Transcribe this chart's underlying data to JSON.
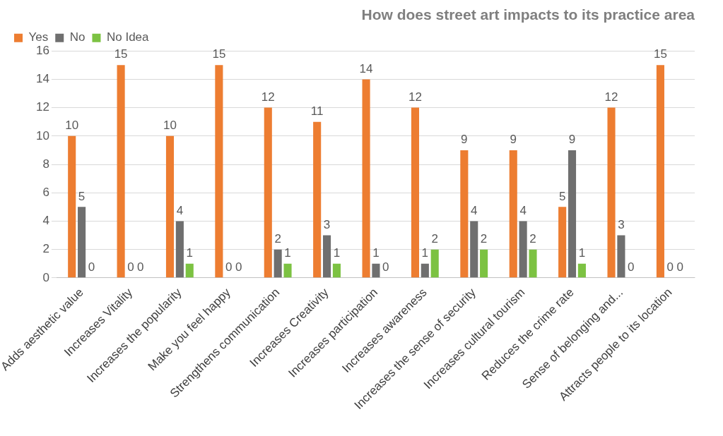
{
  "chart_data": {
    "type": "bar",
    "title": "How does street art impacts to its practice area",
    "categories": [
      "Adds aesthetic value",
      "Increases Vitality",
      "Increases the popularity",
      "Make you feel happy",
      "Strengthens communication",
      "Increases Creativity",
      "Increases participation",
      "Increases awareness",
      "Increases the sense of security",
      "Increases cultural tourism",
      "Reduces the crime rate",
      "Sense of belonging and...",
      "Attracts people to its location"
    ],
    "series": [
      {
        "name": "Yes",
        "color": "#ed7d31",
        "values": [
          10,
          15,
          10,
          15,
          12,
          11,
          14,
          12,
          9,
          9,
          5,
          12,
          15
        ]
      },
      {
        "name": "No",
        "color": "#6f6f6f",
        "values": [
          5,
          0,
          4,
          0,
          2,
          3,
          1,
          1,
          4,
          4,
          9,
          3,
          0
        ]
      },
      {
        "name": "No Idea",
        "color": "#7cc242",
        "values": [
          0,
          0,
          1,
          0,
          1,
          1,
          0,
          2,
          2,
          2,
          1,
          0,
          0
        ]
      }
    ],
    "ylim": [
      0,
      16
    ],
    "yticks": [
      0,
      2,
      4,
      6,
      8,
      10,
      12,
      14,
      16
    ],
    "grid": "y",
    "legend": "top left",
    "data_labels": true
  }
}
